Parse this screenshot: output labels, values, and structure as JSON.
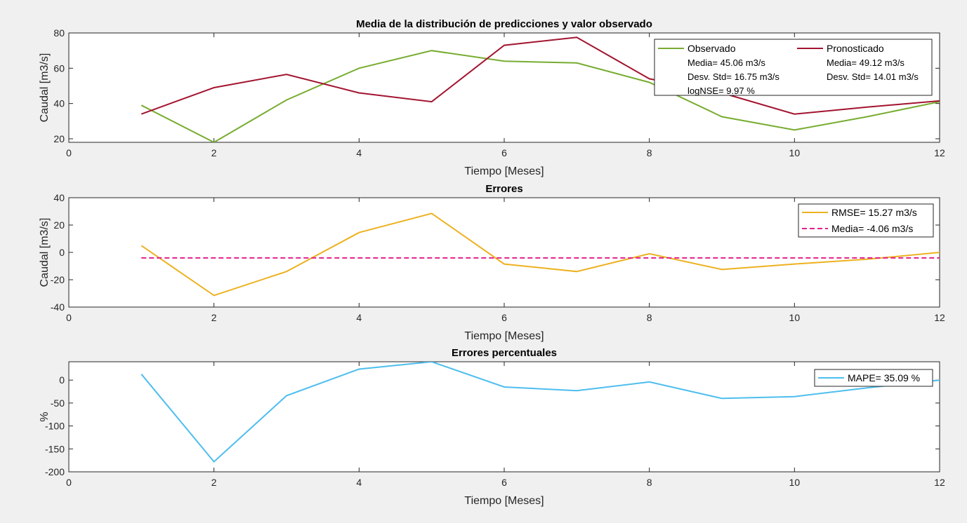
{
  "chart_data": [
    {
      "type": "line",
      "title": "Media de la distribución de predicciones y valor observado",
      "xlabel": "Tiempo [Meses]",
      "ylabel": "Caudal [m3/s]",
      "xlim": [
        0,
        12
      ],
      "ylim": [
        18,
        80
      ],
      "xticks": [
        0,
        2,
        4,
        6,
        8,
        10,
        12
      ],
      "yticks": [
        20,
        40,
        60,
        80
      ],
      "x": [
        1,
        2,
        3,
        4,
        5,
        6,
        7,
        8,
        9,
        10,
        11,
        12
      ],
      "series": [
        {
          "name": "Observado",
          "color": "#77ac30",
          "dash": "solid",
          "values": [
            39,
            18,
            42,
            60,
            70,
            64,
            63,
            52,
            32.5,
            25,
            32.5,
            41
          ]
        },
        {
          "name": "Pronosticado",
          "color": "#a2142f",
          "dash": "solid",
          "values": [
            34,
            49,
            56.5,
            46,
            41,
            73,
            77.5,
            54,
            46,
            34,
            38,
            41.5
          ]
        }
      ],
      "legend": {
        "position": "top-right",
        "columns": [
          {
            "series": "Observado",
            "lines": [
              "Media= 45.06 m3/s",
              "Desv. Std= 16.75 m3/s",
              "logNSE= 9.97 %"
            ]
          },
          {
            "series": "Pronosticado",
            "lines": [
              "Media= 49.12 m3/s",
              "Desv. Std= 14.01 m3/s"
            ]
          }
        ]
      }
    },
    {
      "type": "line",
      "title": "Errores",
      "xlabel": "Tiempo [Meses]",
      "ylabel": "Caudal [m3/s]",
      "xlim": [
        0,
        12
      ],
      "ylim": [
        -40,
        40
      ],
      "xticks": [
        0,
        2,
        4,
        6,
        8,
        10,
        12
      ],
      "yticks": [
        -40,
        -20,
        0,
        20,
        40
      ],
      "x": [
        1,
        2,
        3,
        4,
        5,
        6,
        7,
        8,
        9,
        10,
        11,
        12
      ],
      "series": [
        {
          "name": "RMSE= 15.27 m3/s",
          "color": "#edb120",
          "dash": "solid",
          "values": [
            5,
            -31.5,
            -14,
            14.5,
            28.5,
            -8.5,
            -14,
            -1,
            -12.5,
            -8.5,
            -5,
            0
          ]
        },
        {
          "name": "Media= -4.06 m3/s",
          "color": "#e0208c",
          "dash": "dashed",
          "values": [
            -4.06,
            -4.06,
            -4.06,
            -4.06,
            -4.06,
            -4.06,
            -4.06,
            -4.06,
            -4.06,
            -4.06,
            -4.06,
            -4.06
          ]
        }
      ],
      "legend": {
        "position": "top-right"
      }
    },
    {
      "type": "line",
      "title": "Errores percentuales",
      "xlabel": "Tiempo [Meses]",
      "ylabel": "%",
      "xlim": [
        0,
        12
      ],
      "ylim": [
        -200,
        40
      ],
      "xticks": [
        0,
        2,
        4,
        6,
        8,
        10,
        12
      ],
      "yticks": [
        -200,
        -150,
        -100,
        -50,
        0
      ],
      "x": [
        1,
        2,
        3,
        4,
        5,
        6,
        7,
        8,
        9,
        10,
        11,
        12
      ],
      "series": [
        {
          "name": "MAPE= 35.09 %",
          "color": "#4dbeee",
          "dash": "solid",
          "values": [
            13,
            -178,
            -34,
            24,
            40,
            -15,
            -23,
            -4,
            -40,
            -36,
            -17,
            0
          ]
        }
      ],
      "legend": {
        "position": "top-right"
      }
    }
  ]
}
